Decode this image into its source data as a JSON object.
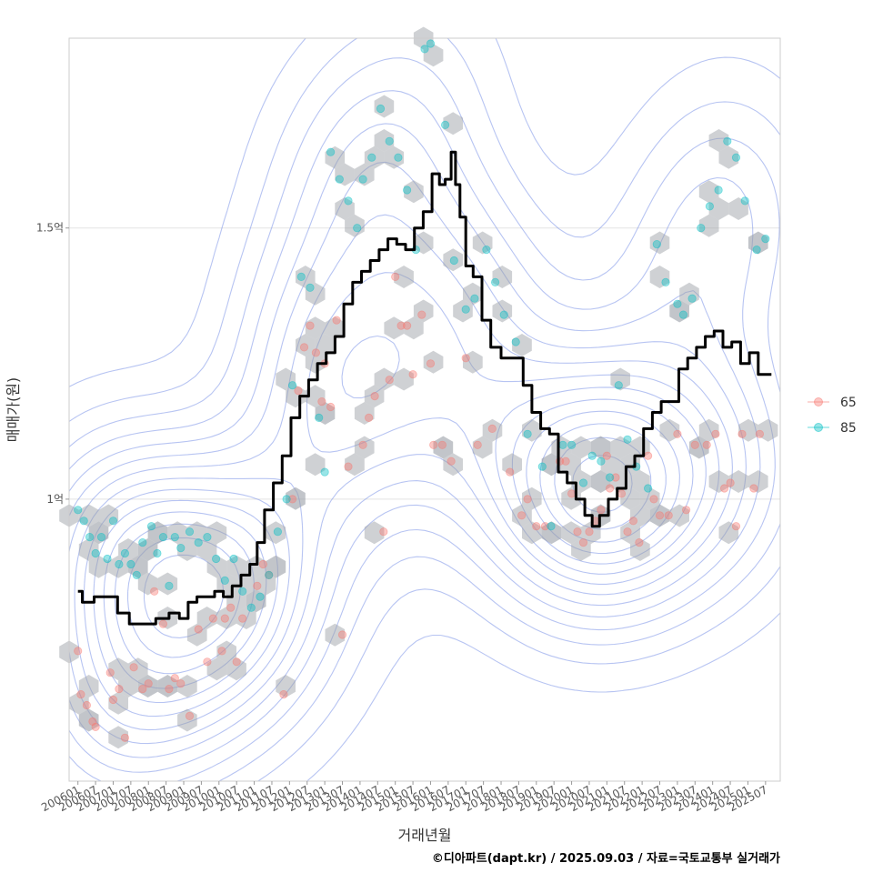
{
  "chart_data": {
    "type": "scatter",
    "xlabel": "거래년월",
    "ylabel": "매매가(원)",
    "caption": "©디아파트(dapt.kr) / 2025.09.03 / 자료=국토교통부 실거래가",
    "x_range": [
      "2005-10",
      "2025-12"
    ],
    "ylim": [
      48000000,
      185000000
    ],
    "y_ticks": [
      {
        "value": 100000000,
        "label": "1억"
      },
      {
        "value": 150000000,
        "label": "1.5억"
      }
    ],
    "x_ticks": [
      "200601",
      "200607",
      "200701",
      "200707",
      "200801",
      "200807",
      "200901",
      "200907",
      "201001",
      "201007",
      "201101",
      "201107",
      "201201",
      "201207",
      "201301",
      "201307",
      "201401",
      "201407",
      "201501",
      "201507",
      "201601",
      "201607",
      "201701",
      "201707",
      "201801",
      "201807",
      "201901",
      "201907",
      "202001",
      "202007",
      "202101",
      "202107",
      "202201",
      "202207",
      "202301",
      "202307",
      "202401",
      "202407",
      "202501",
      "202507"
    ],
    "grid": true,
    "legend": {
      "position": "right",
      "entries": [
        {
          "label": "65",
          "color": "#F8766D"
        },
        {
          "label": "85",
          "color": "#00BFC4"
        }
      ]
    },
    "colors": {
      "series_65": "#F8766D",
      "series_85": "#00BFC4",
      "trend_line": "#000000",
      "hexbin": "#9a9fa6",
      "contour": "#7b93e8",
      "grid": "#e3e3e3",
      "panel_border": "#cccccc"
    },
    "series": [
      {
        "name": "65",
        "points": [
          [
            "2006-01",
            72
          ],
          [
            "2006-02",
            64
          ],
          [
            "2006-04",
            62
          ],
          [
            "2006-06",
            59
          ],
          [
            "2006-07",
            58
          ],
          [
            "2006-12",
            68
          ],
          [
            "2007-01",
            63
          ],
          [
            "2007-03",
            65
          ],
          [
            "2007-05",
            56
          ],
          [
            "2007-08",
            69
          ],
          [
            "2007-11",
            65
          ],
          [
            "2008-01",
            66
          ],
          [
            "2008-03",
            83
          ],
          [
            "2008-06",
            77
          ],
          [
            "2008-08",
            65
          ],
          [
            "2008-10",
            67
          ],
          [
            "2008-12",
            66
          ],
          [
            "2009-03",
            60
          ],
          [
            "2009-06",
            76
          ],
          [
            "2009-09",
            70
          ],
          [
            "2009-11",
            78
          ],
          [
            "2010-02",
            72
          ],
          [
            "2010-03",
            78
          ],
          [
            "2010-05",
            80
          ],
          [
            "2010-07",
            70
          ],
          [
            "2010-09",
            78
          ],
          [
            "2011-02",
            84
          ],
          [
            "2011-04",
            88
          ],
          [
            "2011-06",
            86
          ],
          [
            "2011-11",
            64
          ],
          [
            "2012-02",
            100
          ],
          [
            "2012-04",
            120
          ],
          [
            "2012-06",
            128
          ],
          [
            "2012-08",
            132
          ],
          [
            "2012-10",
            127
          ],
          [
            "2012-12",
            118
          ],
          [
            "2013-01",
            125
          ],
          [
            "2013-03",
            117
          ],
          [
            "2013-05",
            133
          ],
          [
            "2013-07",
            75
          ],
          [
            "2013-09",
            106
          ],
          [
            "2014-02",
            110
          ],
          [
            "2014-04",
            115
          ],
          [
            "2014-06",
            119
          ],
          [
            "2014-09",
            94
          ],
          [
            "2014-11",
            122
          ],
          [
            "2015-01",
            141
          ],
          [
            "2015-03",
            132
          ],
          [
            "2015-05",
            132
          ],
          [
            "2015-07",
            123
          ],
          [
            "2015-10",
            134
          ],
          [
            "2016-01",
            125
          ],
          [
            "2016-02",
            110
          ],
          [
            "2016-05",
            110
          ],
          [
            "2016-08",
            107
          ],
          [
            "2017-01",
            126
          ],
          [
            "2017-05",
            110
          ],
          [
            "2017-10",
            113
          ],
          [
            "2018-04",
            105
          ],
          [
            "2018-08",
            97
          ],
          [
            "2018-10",
            100
          ],
          [
            "2019-01",
            95
          ],
          [
            "2019-04",
            95
          ],
          [
            "2019-09",
            107
          ],
          [
            "2019-11",
            107
          ],
          [
            "2020-01",
            101
          ],
          [
            "2020-03",
            94
          ],
          [
            "2020-05",
            92
          ],
          [
            "2020-07",
            94
          ],
          [
            "2020-09",
            96
          ],
          [
            "2020-11",
            98
          ],
          [
            "2021-01",
            108
          ],
          [
            "2021-02",
            102
          ],
          [
            "2021-04",
            104
          ],
          [
            "2021-06",
            101
          ],
          [
            "2021-08",
            94
          ],
          [
            "2021-10",
            96
          ],
          [
            "2021-12",
            92
          ],
          [
            "2022-03",
            108
          ],
          [
            "2022-05",
            100
          ],
          [
            "2022-07",
            97
          ],
          [
            "2022-10",
            97
          ],
          [
            "2023-01",
            112
          ],
          [
            "2023-04",
            98
          ],
          [
            "2023-07",
            110
          ],
          [
            "2023-11",
            110
          ],
          [
            "2024-02",
            112
          ],
          [
            "2024-05",
            102
          ],
          [
            "2024-07",
            103
          ],
          [
            "2024-09",
            95
          ],
          [
            "2024-11",
            112
          ],
          [
            "2025-03",
            102
          ],
          [
            "2025-05",
            112
          ]
        ]
      },
      {
        "name": "85",
        "points": [
          [
            "2006-01",
            98
          ],
          [
            "2006-03",
            96
          ],
          [
            "2006-05",
            93
          ],
          [
            "2006-07",
            90
          ],
          [
            "2006-09",
            93
          ],
          [
            "2006-11",
            89
          ],
          [
            "2007-01",
            96
          ],
          [
            "2007-03",
            88
          ],
          [
            "2007-05",
            90
          ],
          [
            "2007-07",
            88
          ],
          [
            "2007-09",
            86
          ],
          [
            "2007-11",
            92
          ],
          [
            "2008-02",
            95
          ],
          [
            "2008-04",
            90
          ],
          [
            "2008-06",
            93
          ],
          [
            "2008-08",
            84
          ],
          [
            "2008-10",
            93
          ],
          [
            "2008-12",
            91
          ],
          [
            "2009-03",
            94
          ],
          [
            "2009-06",
            92
          ],
          [
            "2009-09",
            93
          ],
          [
            "2009-12",
            89
          ],
          [
            "2010-03",
            85
          ],
          [
            "2010-06",
            89
          ],
          [
            "2010-09",
            83
          ],
          [
            "2010-12",
            80
          ],
          [
            "2011-03",
            82
          ],
          [
            "2011-06",
            86
          ],
          [
            "2011-09",
            94
          ],
          [
            "2011-12",
            100
          ],
          [
            "2012-02",
            121
          ],
          [
            "2012-05",
            141
          ],
          [
            "2012-08",
            139
          ],
          [
            "2012-11",
            115
          ],
          [
            "2013-01",
            105
          ],
          [
            "2013-03",
            164
          ],
          [
            "2013-06",
            159
          ],
          [
            "2013-09",
            155
          ],
          [
            "2013-12",
            150
          ],
          [
            "2014-02",
            159
          ],
          [
            "2014-05",
            163
          ],
          [
            "2014-08",
            172
          ],
          [
            "2014-11",
            166
          ],
          [
            "2015-02",
            163
          ],
          [
            "2015-05",
            157
          ],
          [
            "2015-08",
            146
          ],
          [
            "2015-11",
            183
          ],
          [
            "2016-01",
            184
          ],
          [
            "2016-06",
            169
          ],
          [
            "2016-09",
            144
          ],
          [
            "2017-01",
            135
          ],
          [
            "2017-04",
            137
          ],
          [
            "2017-08",
            146
          ],
          [
            "2017-11",
            140
          ],
          [
            "2018-02",
            134
          ],
          [
            "2018-06",
            129
          ],
          [
            "2018-10",
            112
          ],
          [
            "2019-03",
            106
          ],
          [
            "2019-06",
            95
          ],
          [
            "2019-10",
            110
          ],
          [
            "2020-01",
            110
          ],
          [
            "2020-05",
            103
          ],
          [
            "2020-08",
            108
          ],
          [
            "2020-11",
            107
          ],
          [
            "2021-02",
            104
          ],
          [
            "2021-05",
            121
          ],
          [
            "2021-08",
            111
          ],
          [
            "2021-11",
            106
          ],
          [
            "2022-03",
            102
          ],
          [
            "2022-06",
            147
          ],
          [
            "2022-09",
            140
          ],
          [
            "2023-01",
            136
          ],
          [
            "2023-03",
            134
          ],
          [
            "2023-06",
            137
          ],
          [
            "2023-09",
            150
          ],
          [
            "2023-12",
            154
          ],
          [
            "2024-03",
            157
          ],
          [
            "2024-06",
            166
          ],
          [
            "2024-09",
            163
          ],
          [
            "2024-12",
            155
          ],
          [
            "2025-04",
            146
          ],
          [
            "2025-07",
            148
          ]
        ]
      }
    ],
    "trend_line": [
      [
        "2006-01",
        83
      ],
      [
        "2006-04",
        81
      ],
      [
        "2006-09",
        82
      ],
      [
        "2007-01",
        82
      ],
      [
        "2007-04",
        79
      ],
      [
        "2007-09",
        77
      ],
      [
        "2008-01",
        77
      ],
      [
        "2008-06",
        78
      ],
      [
        "2008-10",
        79
      ],
      [
        "2009-01",
        78
      ],
      [
        "2009-04",
        81
      ],
      [
        "2009-07",
        82
      ],
      [
        "2009-10",
        82
      ],
      [
        "2010-01",
        83
      ],
      [
        "2010-04",
        82
      ],
      [
        "2010-07",
        84
      ],
      [
        "2010-10",
        86
      ],
      [
        "2011-01",
        88
      ],
      [
        "2011-03",
        92
      ],
      [
        "2011-06",
        98
      ],
      [
        "2011-09",
        103
      ],
      [
        "2011-12",
        108
      ],
      [
        "2012-03",
        115
      ],
      [
        "2012-06",
        119
      ],
      [
        "2012-09",
        122
      ],
      [
        "2012-12",
        125
      ],
      [
        "2013-03",
        127
      ],
      [
        "2013-06",
        130
      ],
      [
        "2013-09",
        136
      ],
      [
        "2013-12",
        140
      ],
      [
        "2014-03",
        142
      ],
      [
        "2014-06",
        144
      ],
      [
        "2014-09",
        146
      ],
      [
        "2014-12",
        148
      ],
      [
        "2015-03",
        147
      ],
      [
        "2015-06",
        146
      ],
      [
        "2015-09",
        150
      ],
      [
        "2015-12",
        153
      ],
      [
        "2016-03",
        160
      ],
      [
        "2016-05",
        158
      ],
      [
        "2016-07",
        159
      ],
      [
        "2016-09",
        164
      ],
      [
        "2016-10",
        158
      ],
      [
        "2016-12",
        152
      ],
      [
        "2017-02",
        143
      ],
      [
        "2017-05",
        141
      ],
      [
        "2017-08",
        133
      ],
      [
        "2017-11",
        128
      ],
      [
        "2018-03",
        126
      ],
      [
        "2018-07",
        126
      ],
      [
        "2018-10",
        121
      ],
      [
        "2019-01",
        116
      ],
      [
        "2019-04",
        113
      ],
      [
        "2019-07",
        112
      ],
      [
        "2019-10",
        105
      ],
      [
        "2020-01",
        103
      ],
      [
        "2020-04",
        100
      ],
      [
        "2020-07",
        97
      ],
      [
        "2020-09",
        95
      ],
      [
        "2020-12",
        97
      ],
      [
        "2021-03",
        100
      ],
      [
        "2021-06",
        102
      ],
      [
        "2021-09",
        106
      ],
      [
        "2021-12",
        108
      ],
      [
        "2022-03",
        113
      ],
      [
        "2022-06",
        116
      ],
      [
        "2022-09",
        118
      ],
      [
        "2022-12",
        118
      ],
      [
        "2023-03",
        124
      ],
      [
        "2023-06",
        126
      ],
      [
        "2023-09",
        128
      ],
      [
        "2023-12",
        130
      ],
      [
        "2024-03",
        131
      ],
      [
        "2024-06",
        128
      ],
      [
        "2024-09",
        129
      ],
      [
        "2024-12",
        125
      ],
      [
        "2025-03",
        127
      ],
      [
        "2025-06",
        123
      ],
      [
        "2025-09",
        123
      ]
    ]
  }
}
